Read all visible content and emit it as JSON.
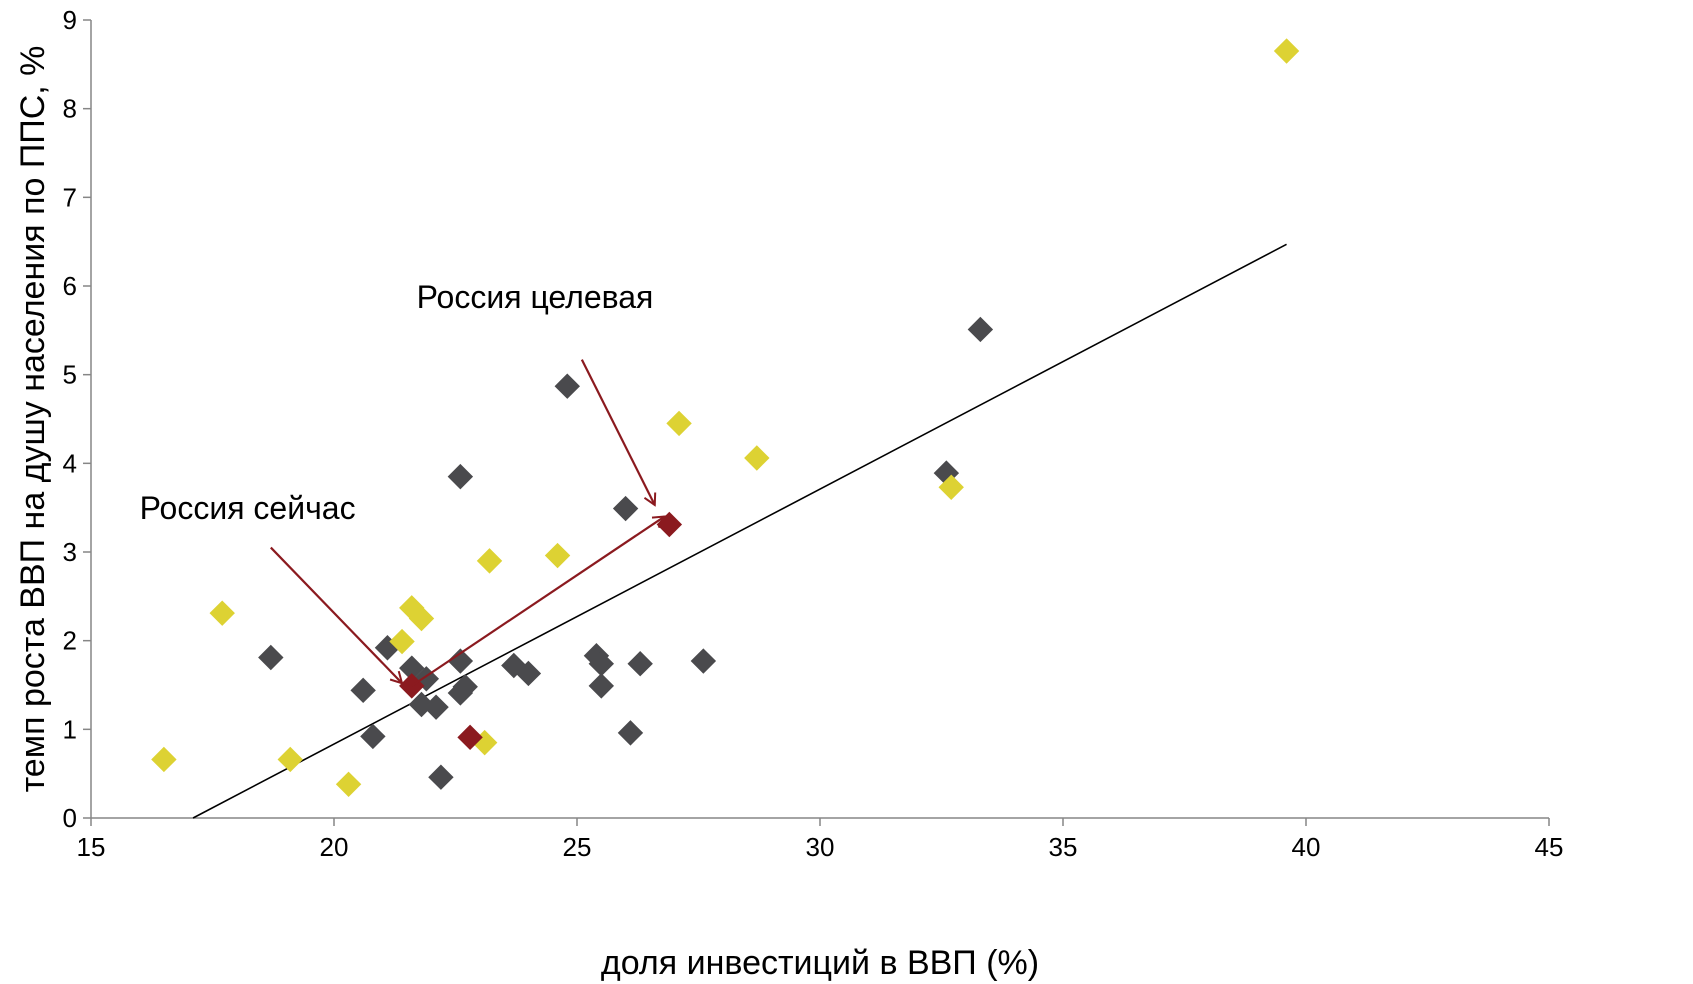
{
  "chart_data": {
    "type": "scatter",
    "title": "",
    "xlabel": "доля инвестиций в ВВП (%)",
    "ylabel": "темп роста ВВП на душу населения по ППС, %",
    "xlim": [
      15,
      45
    ],
    "ylim": [
      0,
      9
    ],
    "x_ticks": [
      "15",
      "20",
      "25",
      "30",
      "35",
      "40",
      "45"
    ],
    "y_ticks": [
      "0",
      "1",
      "2",
      "3",
      "4",
      "5",
      "6",
      "7",
      "8",
      "9"
    ],
    "grid": false,
    "legend": "none",
    "colors": {
      "dark": "#4a4a4d",
      "yellow": "#ddd233",
      "russia": "#8b1a1f",
      "trendline": "#000000",
      "arrow": "#8b1a1f"
    },
    "series": [
      {
        "color": "dark",
        "points": [
          [
            18.7,
            1.81
          ],
          [
            20.6,
            1.44
          ],
          [
            20.8,
            0.92
          ],
          [
            21.1,
            1.92
          ],
          [
            21.6,
            1.69
          ],
          [
            21.8,
            1.28
          ],
          [
            21.9,
            1.57
          ],
          [
            22.1,
            1.25
          ],
          [
            22.2,
            0.46
          ],
          [
            22.6,
            1.41
          ],
          [
            22.6,
            1.77
          ],
          [
            22.6,
            3.85
          ],
          [
            22.7,
            1.48
          ],
          [
            23.7,
            1.72
          ],
          [
            24.0,
            1.63
          ],
          [
            24.8,
            4.87
          ],
          [
            25.4,
            1.83
          ],
          [
            25.5,
            1.74
          ],
          [
            25.5,
            1.49
          ],
          [
            26.0,
            3.49
          ],
          [
            26.1,
            0.96
          ],
          [
            26.3,
            1.74
          ],
          [
            27.6,
            1.77
          ],
          [
            32.6,
            3.89
          ],
          [
            33.3,
            5.51
          ]
        ]
      },
      {
        "color": "yellow",
        "points": [
          [
            16.5,
            0.66
          ],
          [
            17.7,
            2.31
          ],
          [
            19.1,
            0.66
          ],
          [
            20.3,
            0.38
          ],
          [
            21.4,
            1.99
          ],
          [
            21.6,
            2.37
          ],
          [
            21.8,
            2.25
          ],
          [
            23.1,
            0.85
          ],
          [
            23.2,
            2.9
          ],
          [
            24.6,
            2.96
          ],
          [
            27.1,
            4.45
          ],
          [
            28.7,
            4.06
          ],
          [
            32.7,
            3.73
          ],
          [
            39.6,
            8.65
          ]
        ]
      },
      {
        "color": "russia",
        "points": [
          [
            21.6,
            1.49
          ],
          [
            26.9,
            3.31
          ],
          [
            22.8,
            0.91
          ]
        ]
      }
    ],
    "trendline": {
      "from": [
        17.1,
        0
      ],
      "to": [
        39.6,
        6.47
      ]
    },
    "annotations": [
      {
        "text": "Россия целевая",
        "anchor": [
          21.7,
          5.75
        ],
        "arrow_from": [
          25.1,
          5.17
        ],
        "arrow_to": [
          26.6,
          3.53
        ]
      },
      {
        "text": "Россия сейчас",
        "anchor": [
          16.0,
          3.37
        ],
        "arrow_from": [
          18.7,
          3.05
        ],
        "arrow_to": [
          21.4,
          1.52
        ]
      }
    ],
    "connector_arrow": {
      "from": [
        21.6,
        1.49
      ],
      "to": [
        26.8,
        3.4
      ]
    }
  }
}
